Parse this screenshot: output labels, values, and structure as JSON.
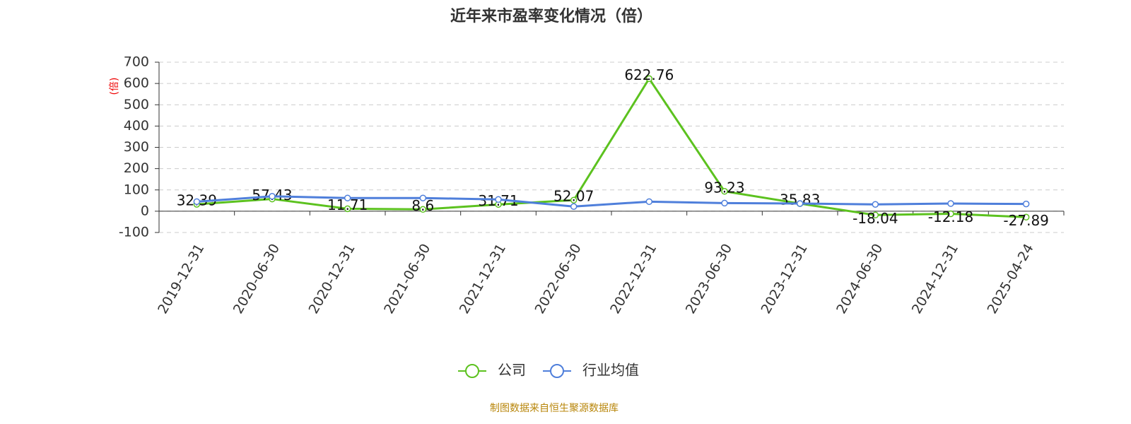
{
  "chart_data": {
    "type": "line",
    "title": "近年来市盈率变化情况（倍）",
    "y_label": "(倍)",
    "source": "制图数据来自恒生聚源数据库",
    "categories": [
      "2019-12-31",
      "2020-06-30",
      "2020-12-31",
      "2021-06-30",
      "2021-12-31",
      "2022-06-30",
      "2022-12-31",
      "2023-06-30",
      "2023-12-31",
      "2024-06-30",
      "2024-12-31",
      "2025-04-24"
    ],
    "series": [
      {
        "name": "公司",
        "color": "#5cc21f",
        "values": [
          32.39,
          57.43,
          11.71,
          8.6,
          31.71,
          52.07,
          622.76,
          93.23,
          35.83,
          -18.04,
          -12.18,
          -27.89
        ],
        "labels": true
      },
      {
        "name": "行业均值",
        "color": "#4f7fdb",
        "values": [
          45,
          70,
          62,
          62,
          55,
          22,
          45,
          38,
          36,
          32,
          36,
          34
        ]
      }
    ],
    "ylim": [
      -100,
      700
    ],
    "yticks": [
      -100,
      0,
      100,
      200,
      300,
      400,
      500,
      600,
      700
    ],
    "grid": true
  }
}
